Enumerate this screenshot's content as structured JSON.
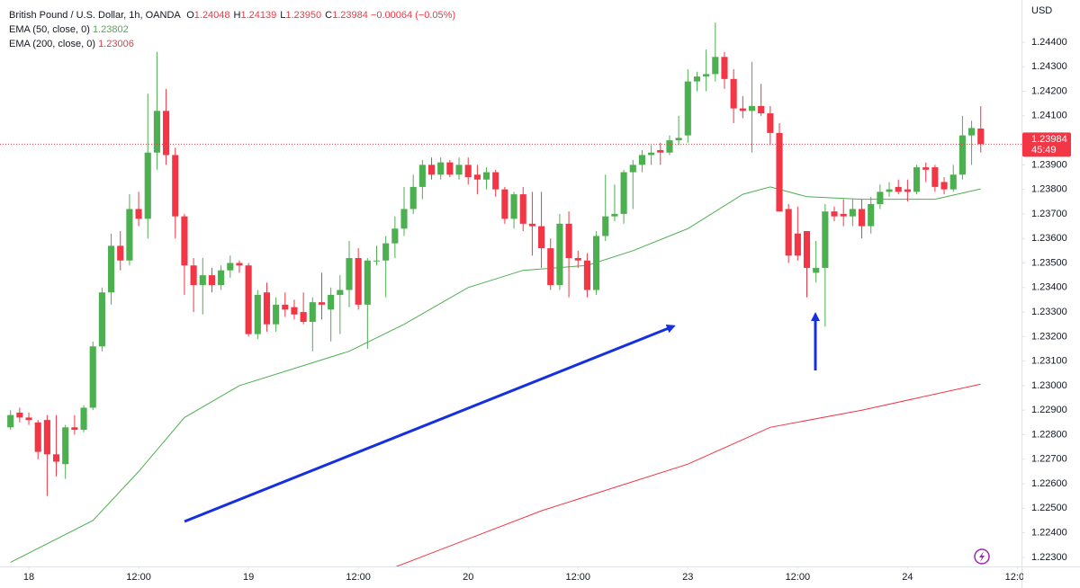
{
  "chart_data": {
    "type": "candlestick",
    "header": {
      "title": "British Pound / U.S. Dollar, 1h, OANDA",
      "fields": [
        {
          "key": "O",
          "label": "1.24048"
        },
        {
          "key": "H",
          "label": "1.24139"
        },
        {
          "key": "L",
          "label": "1.23950"
        },
        {
          "key": "C",
          "label": "1.23984"
        }
      ],
      "change": "−0.00064 (−0.05%)",
      "countdown": "45:49",
      "currency": "USD"
    },
    "up_color": "#4caf50",
    "down_color": "#f23645",
    "grid": false,
    "x": [
      -2,
      -1,
      0,
      1,
      2,
      3,
      4,
      5,
      6,
      7,
      8,
      9,
      10,
      11,
      12,
      13,
      14,
      15,
      16,
      17,
      18,
      19,
      20,
      21,
      22,
      23,
      24,
      25,
      26,
      27,
      28,
      29,
      30,
      31,
      32,
      33,
      34,
      35,
      36,
      37,
      38,
      39,
      40,
      41,
      42,
      43,
      44,
      45,
      46,
      47,
      48,
      49,
      50,
      51,
      52,
      53,
      54,
      55,
      56,
      57,
      58,
      59,
      60,
      61,
      62,
      63,
      64,
      65,
      66,
      67,
      68,
      69,
      70,
      71,
      72,
      73,
      74,
      75,
      76,
      77,
      78,
      79,
      80,
      81,
      82,
      83,
      84,
      85,
      86,
      87,
      88,
      89,
      90,
      91,
      92,
      93,
      94,
      95,
      96,
      97,
      98,
      99,
      100,
      101,
      102,
      103,
      104
    ],
    "open": [
      1.2283,
      1.2289,
      1.2287,
      1.2285,
      1.2286,
      1.2272,
      1.2268,
      1.2283,
      1.2282,
      1.2291,
      1.2316,
      1.2338,
      1.2357,
      1.2351,
      1.2372,
      1.2368,
      1.2395,
      1.2412,
      1.2394,
      1.2369,
      1.2349,
      1.2341,
      1.2345,
      1.2341,
      1.2347,
      1.235,
      1.2349,
      1.2321,
      1.2338,
      1.2325,
      1.2333,
      1.2332,
      1.233,
      1.2326,
      1.2334,
      1.2331,
      1.2337,
      1.2339,
      1.2352,
      1.2333,
      1.2351,
      1.2351,
      1.2358,
      1.2364,
      1.2372,
      1.2381,
      1.239,
      1.2386,
      1.2391,
      1.2386,
      1.239,
      1.2386,
      1.2384,
      1.2387,
      1.238,
      1.2368,
      1.2378,
      1.2366,
      1.2365,
      1.2356,
      1.2341,
      1.2366,
      1.2352,
      1.2351,
      1.2339,
      1.2361,
      1.2369,
      1.237,
      1.2387,
      1.239,
      1.2394,
      1.2396,
      1.2395,
      1.24,
      1.2402,
      1.2424,
      1.2426,
      1.2427,
      1.2434,
      1.2425,
      1.2413,
      1.2412,
      1.2414,
      1.2411,
      1.2403,
      1.2372,
      1.2362,
      1.2363,
      1.2346,
      1.2348,
      1.2371,
      1.237,
      1.2369,
      1.2372,
      1.2365,
      1.2374,
      1.2379,
      1.2381,
      1.238,
      1.2379,
      1.2389,
      1.2389,
      1.2383,
      1.238,
      1.2386,
      1.2402,
      1.24048
    ],
    "high": [
      1.229,
      1.2291,
      1.2289,
      1.2286,
      1.2288,
      1.2288,
      1.2284,
      1.2288,
      1.2292,
      1.2318,
      1.234,
      1.2362,
      1.2363,
      1.2378,
      1.2379,
      1.2419,
      1.2436,
      1.2421,
      1.2397,
      1.237,
      1.2352,
      1.2352,
      1.2348,
      1.2349,
      1.2353,
      1.2351,
      1.235,
      1.2339,
      1.2342,
      1.2336,
      1.2338,
      1.2335,
      1.2338,
      1.2336,
      1.2346,
      1.234,
      1.2345,
      1.2359,
      1.2356,
      1.2352,
      1.2357,
      1.2361,
      1.2369,
      1.2381,
      1.2386,
      1.2392,
      1.2393,
      1.2393,
      1.2392,
      1.2393,
      1.2393,
      1.239,
      1.2389,
      1.2388,
      1.2381,
      1.2379,
      1.2381,
      1.2379,
      1.2379,
      1.236,
      1.237,
      1.2371,
      1.2355,
      1.2354,
      1.2363,
      1.2386,
      1.2382,
      1.2388,
      1.2392,
      1.2396,
      1.2398,
      1.2399,
      1.2402,
      1.241,
      1.2429,
      1.2428,
      1.2437,
      1.2448,
      1.2436,
      1.2429,
      1.2418,
      1.2432,
      1.2423,
      1.2414,
      1.2407,
      1.2374,
      1.2373,
      1.2363,
      1.2359,
      1.2374,
      1.2373,
      1.2376,
      1.2376,
      1.2376,
      1.2377,
      1.2382,
      1.2383,
      1.2384,
      1.2384,
      1.239,
      1.2391,
      1.239,
      1.2385,
      1.239,
      1.241,
      1.2408,
      1.24139
    ],
    "low": [
      1.2282,
      1.2285,
      1.2284,
      1.227,
      1.2255,
      1.2263,
      1.2262,
      1.228,
      1.2281,
      1.229,
      1.2314,
      1.2333,
      1.2347,
      1.2349,
      1.2365,
      1.236,
      1.2388,
      1.239,
      1.236,
      1.2337,
      1.233,
      1.2329,
      1.2338,
      1.2339,
      1.2344,
      1.2346,
      1.232,
      1.2319,
      1.2322,
      1.2322,
      1.2328,
      1.2327,
      1.2325,
      1.2314,
      1.2327,
      1.2318,
      1.2321,
      1.2332,
      1.2331,
      1.2315,
      1.2349,
      1.2336,
      1.2352,
      1.2361,
      1.237,
      1.2376,
      1.2384,
      1.2384,
      1.2385,
      1.2384,
      1.2382,
      1.2378,
      1.238,
      1.2377,
      1.2366,
      1.2364,
      1.2363,
      1.2353,
      1.2348,
      1.2339,
      1.2339,
      1.2336,
      1.2348,
      1.2336,
      1.2337,
      1.2359,
      1.2367,
      1.2366,
      1.2372,
      1.2387,
      1.239,
      1.239,
      1.2394,
      1.2398,
      1.2399,
      1.242,
      1.242,
      1.2424,
      1.2421,
      1.2407,
      1.2409,
      1.2395,
      1.241,
      1.2398,
      1.2371,
      1.235,
      1.2351,
      1.2336,
      1.2342,
      1.2324,
      1.2367,
      1.2365,
      1.2365,
      1.236,
      1.2362,
      1.2372,
      1.2377,
      1.2378,
      1.2375,
      1.2378,
      1.2383,
      1.2379,
      1.2378,
      1.2379,
      1.2384,
      1.239,
      1.2395
    ],
    "close": [
      1.2288,
      1.2287,
      1.2286,
      1.2273,
      1.2272,
      1.2269,
      1.2283,
      1.2282,
      1.2291,
      1.2316,
      1.2338,
      1.2357,
      1.2351,
      1.2372,
      1.2368,
      1.2395,
      1.2412,
      1.2394,
      1.2369,
      1.2349,
      1.2341,
      1.2345,
      1.2341,
      1.2347,
      1.235,
      1.2349,
      1.2321,
      1.2337,
      1.2325,
      1.2333,
      1.2331,
      1.2329,
      1.2326,
      1.2334,
      1.2333,
      1.2337,
      1.2339,
      1.2352,
      1.2333,
      1.2351,
      1.2351,
      1.2358,
      1.2364,
      1.2372,
      1.2381,
      1.239,
      1.2386,
      1.2391,
      1.2386,
      1.239,
      1.2385,
      1.2384,
      1.2387,
      1.238,
      1.2368,
      1.2378,
      1.2366,
      1.2365,
      1.2356,
      1.2341,
      1.2366,
      1.2352,
      1.2351,
      1.2339,
      1.2361,
      1.2369,
      1.237,
      1.2387,
      1.239,
      1.2394,
      1.2395,
      1.2395,
      1.24,
      1.2401,
      1.2424,
      1.2426,
      1.2427,
      1.2434,
      1.2425,
      1.2413,
      1.2412,
      1.2414,
      1.2411,
      1.2403,
      1.2371,
      1.2353,
      1.2353,
      1.2348,
      1.2348,
      1.2371,
      1.2369,
      1.2369,
      1.2372,
      1.2365,
      1.2374,
      1.2379,
      1.238,
      1.2379,
      1.2379,
      1.2389,
      1.2388,
      1.2381,
      1.238,
      1.2386,
      1.2402,
      1.2405,
      1.23984
    ],
    "indicators": [
      {
        "name": "EMA (50, close, 0)",
        "color": "#4caf50",
        "x": [
          -2,
          7,
          12,
          17,
          23,
          35,
          41,
          48,
          54,
          61,
          66,
          72,
          78,
          81,
          85,
          91,
          99,
          104
        ],
        "values": [
          1.2228,
          1.2245,
          1.2265,
          1.2287,
          1.23,
          1.2314,
          1.2325,
          1.234,
          1.2347,
          1.2349,
          1.2355,
          1.2364,
          1.2378,
          1.2381,
          1.2377,
          1.2376,
          1.2376,
          1.23802
        ]
      },
      {
        "name": "EMA (200, close, 0)",
        "color": "#f23645",
        "x": [
          40,
          56,
          72,
          81,
          91,
          104
        ],
        "values": [
          1.2226,
          1.2249,
          1.2268,
          1.2283,
          1.229,
          1.23006
        ]
      }
    ],
    "xlim": [
      -3.15,
      108.45
    ],
    "xticks": [
      {
        "value": 0,
        "label": "18"
      },
      {
        "value": 12,
        "label": "12:00"
      },
      {
        "value": 24,
        "label": "19"
      },
      {
        "value": 36,
        "label": "12:00"
      },
      {
        "value": 48,
        "label": "20"
      },
      {
        "value": 60,
        "label": "12:00"
      },
      {
        "value": 72,
        "label": "23"
      },
      {
        "value": 84,
        "label": "12:00"
      },
      {
        "value": 96,
        "label": "24"
      },
      {
        "value": 108,
        "label": "12:00"
      }
    ],
    "ylim": [
      1.22263,
      1.24572
    ],
    "yticks": [
      {
        "value": 1.223,
        "label": "1.22300"
      },
      {
        "value": 1.224,
        "label": "1.22400"
      },
      {
        "value": 1.225,
        "label": "1.22500"
      },
      {
        "value": 1.226,
        "label": "1.22600"
      },
      {
        "value": 1.227,
        "label": "1.22700"
      },
      {
        "value": 1.228,
        "label": "1.22800"
      },
      {
        "value": 1.229,
        "label": "1.22900"
      },
      {
        "value": 1.23,
        "label": "1.23000"
      },
      {
        "value": 1.231,
        "label": "1.23100"
      },
      {
        "value": 1.232,
        "label": "1.23200"
      },
      {
        "value": 1.233,
        "label": "1.23300"
      },
      {
        "value": 1.234,
        "label": "1.23400"
      },
      {
        "value": 1.235,
        "label": "1.23500"
      },
      {
        "value": 1.236,
        "label": "1.23600"
      },
      {
        "value": 1.237,
        "label": "1.23700"
      },
      {
        "value": 1.238,
        "label": "1.23800"
      },
      {
        "value": 1.239,
        "label": "1.23900"
      },
      {
        "value": 1.241,
        "label": "1.24100"
      },
      {
        "value": 1.242,
        "label": "1.24200"
      },
      {
        "value": 1.243,
        "label": "1.24300"
      },
      {
        "value": 1.244,
        "label": "1.24400"
      }
    ]
  }
}
